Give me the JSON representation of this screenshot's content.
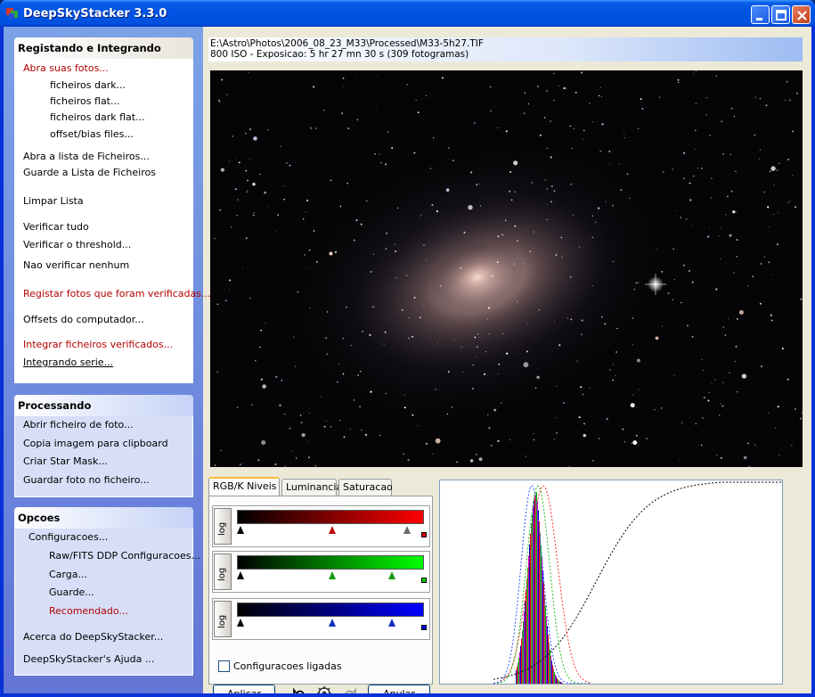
{
  "window": {
    "title": "DeepSkyStacker 3.3.0",
    "title_color": "#0054e3"
  },
  "taskpane": {
    "register": {
      "heading": "Registando e Integrando",
      "items": {
        "open_photos": "Abra suas fotos...",
        "dark_files": "ficheiros dark...",
        "flat_files": "ficheiros flat...",
        "dark_flat_files": "ficheiros dark flat...",
        "offset_files": "offset/bias files...",
        "open_list": "Abra a lista de Ficheiros...",
        "save_list": "Guarde a Lista de Ficheiros",
        "clear_list": "Limpar Lista",
        "check_all": "Verificar tudo",
        "check_threshold": "Verificar o threshold...",
        "check_none": "Nao verificar nenhum",
        "register_checked": "Registar fotos que foram verificadas...",
        "computer_offsets": "Offsets do computador...",
        "stack_checked": "Integrar ficheiros verificados...",
        "batch_stacking": "Integrando serie..."
      }
    },
    "processing": {
      "heading": "Processando",
      "items": {
        "open_picture": "Abrir ficheiro de foto...",
        "copy_clipboard": "Copia imagem para clipboard",
        "create_starmask": "Criar  Star Mask...",
        "save_picture": "Guardar foto no ficheiro..."
      }
    },
    "options": {
      "heading": "Opcoes",
      "items": {
        "settings": "Configuracoes...",
        "raw_settings": "Raw/FITS DDP Configuracoes...",
        "load": "Carga...",
        "save": "Guarde...",
        "recommended": "Recomendado...",
        "about": "Acerca do DeepSkyStacker...",
        "help": "DeepSkyStacker's Ajuda ..."
      }
    }
  },
  "file_info": {
    "path": "E:\\Astro\\Photos\\2006_08_23_M33\\Processed\\M33-5h27.TIF",
    "details": "800 ISO - Exposicao: 5 hr 27 mn 30 s (309 fotogramas)"
  },
  "tabs": [
    "RGB/K Niveis",
    "Luminancia",
    "Saturacao"
  ],
  "levels": {
    "log_label": "log",
    "red_color": "#ff0000",
    "green_color": "#00ff00",
    "blue_color": "#0000ff",
    "linked_label": "Configuracoes ligadas",
    "linked_checked": false
  },
  "buttons": {
    "apply": "Aplicar",
    "cancel": "Anular"
  }
}
